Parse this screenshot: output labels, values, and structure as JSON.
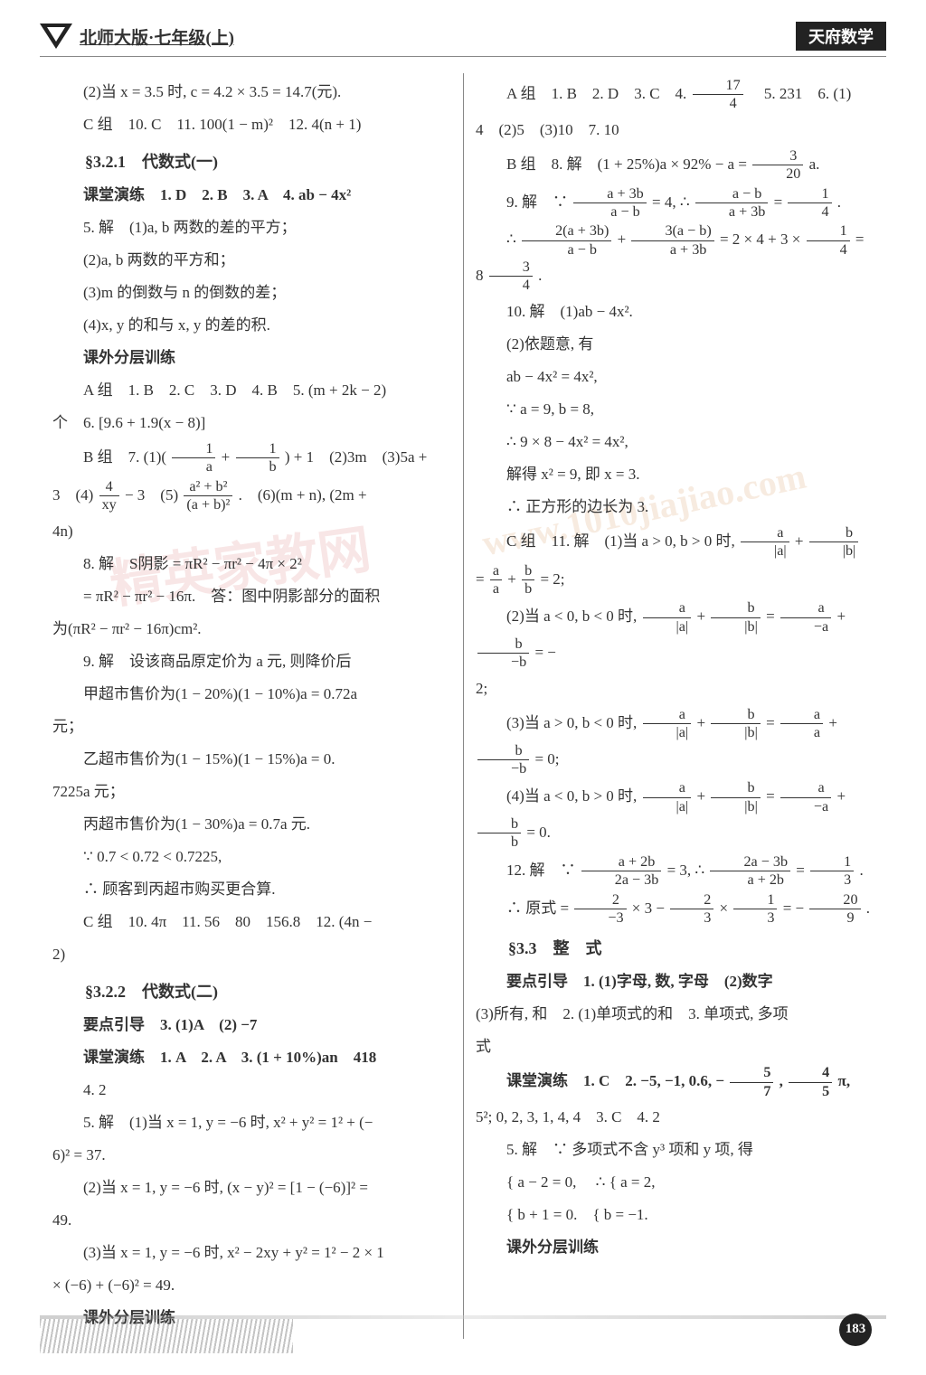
{
  "header": {
    "edition": "北师大版·七年级(上)",
    "brand": "天府数学"
  },
  "page_number": "183",
  "left": {
    "l01": "(2)当 x = 3.5 时, c = 4.2 × 3.5 = 14.7(元).",
    "l02": "C 组　10. C　11. 100(1 − m)²　12. 4(n + 1)",
    "s321": "§3.2.1　代数式(一)",
    "l03": "课堂演练　1. D　2. B　3. A　4. ab − 4x²",
    "l04": "5. 解　(1)a, b 两数的差的平方；",
    "l05": "(2)a, b 两数的平方和；",
    "l06": "(3)m 的倒数与 n 的倒数的差；",
    "l07": "(4)x, y 的和与 x, y 的差的积.",
    "l08": "课外分层训练",
    "l09": "A 组　1. B　2. C　3. D　4. B　5. (m + 2k − 2)",
    "l10": "个　6. [9.6 + 1.9(x − 8)]",
    "l11a": "B 组　7. (1)(",
    "l11b": ") + 1　(2)3m　(3)5a +",
    "l12a": "3　(4)",
    "l12b": " − 3　(5)",
    "l12c": ".　(6)(m + n), (2m +",
    "l13": "4n)",
    "l14": "8. 解　S阴影 = πR² − πr² − 4π × 2²",
    "l15": "= πR² − πr² − 16π.　答：图中阴影部分的面积",
    "l16": "为(πR² − πr² − 16π)cm².",
    "l17": "9. 解　设该商品原定价为 a 元, 则降价后",
    "l18": "甲超市售价为(1 − 20%)(1 − 10%)a = 0.72a",
    "l19": "元；",
    "l20": "乙超市售价为(1 − 15%)(1 − 15%)a = 0.",
    "l21": "7225a 元；",
    "l22": "丙超市售价为(1 − 30%)a = 0.7a 元.",
    "l23": "∵ 0.7 < 0.72 < 0.7225,",
    "l24": "∴ 顾客到丙超市购买更合算.",
    "l25": "C 组　10. 4π　11. 56　80　156.8　12. (4n −",
    "l26": "2)",
    "s322": "§3.2.2　代数式(二)",
    "l27": "要点引导　3. (1)A　(2) −7",
    "l28": "课堂演练　1. A　2. A　3. (1 + 10%)an　418",
    "l29": "4. 2",
    "l30": "5. 解　(1)当 x = 1, y = −6 时, x² + y² = 1² + (−",
    "l31": "6)² = 37.",
    "l32": "(2)当 x = 1, y = −6 时, (x − y)² = [1 − (−6)]² =",
    "l33": "49.",
    "l34": "(3)当 x = 1, y = −6 时, x² − 2xy + y² = 1² − 2 × 1",
    "l35": "× (−6) + (−6)² = 49.",
    "l36": "课外分层训练"
  },
  "right": {
    "r01a": "A 组　1. B　2. D　3. C　4. ",
    "r01b": "　5. 231　6. (1)",
    "r02": "4　(2)5　(3)10　7. 10",
    "r03a": "B 组　8. 解　(1 + 25%)a × 92% − a = ",
    "r03b": "a.",
    "r04a": "9. 解　∵ ",
    "r04b": " = 4, ∴ ",
    "r04c": " = ",
    "r04d": ".",
    "r05a": "∴ ",
    "r05b": " + ",
    "r05c": " = 2 × 4 + 3 × ",
    "r05d": " = 8 ",
    "r05e": ".",
    "r06": "10. 解　(1)ab − 4x².",
    "r07": "(2)依题意, 有",
    "r08": "ab − 4x² = 4x²,",
    "r09": "∵ a = 9, b = 8,",
    "r10": "∴ 9 × 8 − 4x² = 4x²,",
    "r11": "解得 x² = 9, 即 x = 3.",
    "r12": "∴ 正方形的边长为 3.",
    "r13a": "C 组　11. 解　(1)当 a > 0, b > 0 时, ",
    "r13b": " + ",
    "r14a": " = ",
    "r14b": " + ",
    "r14c": " = 2;",
    "r15a": "(2)当 a < 0, b < 0 时, ",
    "r15b": " + ",
    "r15c": " = ",
    "r15d": " + ",
    "r15e": " = −",
    "r16": "2;",
    "r17a": "(3)当 a > 0, b < 0 时, ",
    "r17b": " + ",
    "r17c": " = ",
    "r17d": " + ",
    "r17e": " = 0;",
    "r18a": "(4)当 a < 0, b > 0 时, ",
    "r18b": " + ",
    "r18c": " = ",
    "r18d": " + ",
    "r18e": " = 0.",
    "r19a": "12. 解　∵ ",
    "r19b": " = 3, ∴ ",
    "r19c": " = ",
    "r19d": ".",
    "r20a": "∴ 原式 = ",
    "r20b": " × 3 − ",
    "r20c": " × ",
    "r20d": " = −",
    "r20e": ".",
    "s33": "§3.3　整　式",
    "r21": "要点引导　1. (1)字母, 数, 字母　(2)数字",
    "r22": "(3)所有, 和　2. (1)单项式的和　3. 单项式, 多项",
    "r23": "式",
    "r24a": "课堂演练　1. C　2. −5, −1, 0.6, −",
    "r24b": ", ",
    "r24c": "π,",
    "r25": "5²; 0, 2, 3, 1, 4, 4　3. C　4. 2",
    "r26": "5. 解　∵ 多项式不含 y³ 项和 y 项, 得",
    "r27a": "{ a − 2 = 0,",
    "r27b": "∴ { a = 2,",
    "r28a": "{ b + 1 = 0.",
    "r28b": "   { b = −1.",
    "r29": "课外分层训练"
  },
  "fractions": {
    "f_1a_1b_a": "1",
    "f_1a_1b_b": "a",
    "f_1b_a": "1",
    "f_1b_b": "b",
    "f_4xy_a": "4",
    "f_4xy_b": "xy",
    "f_a2b2_a": "a² + b²",
    "f_a2b2_b": "(a + b)²",
    "f_174_a": "17",
    "f_174_b": "4",
    "f_320_a": "3",
    "f_320_b": "20",
    "f_a3b_a": "a + 3b",
    "f_a3b_b": "a − b",
    "f_ab_a": "a − b",
    "f_ab_b": "a + 3b",
    "f_14_a": "1",
    "f_14_b": "4",
    "f_2a3b_a": "2(a + 3b)",
    "f_2a3b_b": "a − b",
    "f_3ab_a": "3(a − b)",
    "f_3ab_b": "a + 3b",
    "f_34_a": "3",
    "f_34_b": "4",
    "f_aa_a": "a",
    "f_aa_b": "|a|",
    "f_bb_a": "b",
    "f_bb_b": "|b|",
    "f_aa2_a": "a",
    "f_aa2_b": "a",
    "f_bb2_a": "b",
    "f_bb2_b": "b",
    "f_ana_a": "a",
    "f_ana_b": "−a",
    "f_bnb_a": "b",
    "f_bnb_b": "−b",
    "f_a2b_a": "a + 2b",
    "f_a2b_b": "2a − 3b",
    "f_2a3b2_a": "2a − 3b",
    "f_2a3b2_b": "a + 2b",
    "f_13_a": "1",
    "f_13_b": "3",
    "f_2n3_a": "2",
    "f_2n3_b": "−3",
    "f_23_a": "2",
    "f_23_b": "3",
    "f_209_a": "20",
    "f_209_b": "9",
    "f_57_a": "5",
    "f_57_b": "7",
    "f_45_a": "4",
    "f_45_b": "5"
  }
}
